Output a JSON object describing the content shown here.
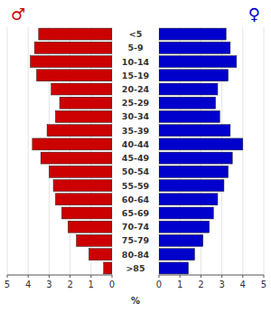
{
  "chart_data": {
    "type": "bar",
    "orientation": "horizontal",
    "categories": [
      ">85",
      "80-84",
      "75-79",
      "70-74",
      "65-69",
      "60-64",
      "55-59",
      "50-54",
      "45-49",
      "40-44",
      "35-39",
      "30-34",
      "25-29",
      "20-24",
      "15-19",
      "10-14",
      "5-9",
      "<5"
    ],
    "series": [
      {
        "name": "♂",
        "color": "#cc0000",
        "values": [
          0.4,
          1.1,
          1.7,
          2.1,
          2.4,
          2.7,
          2.8,
          3.0,
          3.4,
          3.8,
          3.1,
          2.7,
          2.5,
          2.9,
          3.6,
          3.9,
          3.7,
          3.5
        ]
      },
      {
        "name": "♀",
        "color": "#0000cc",
        "values": [
          1.4,
          1.7,
          2.1,
          2.4,
          2.6,
          2.8,
          3.1,
          3.3,
          3.5,
          4.0,
          3.4,
          2.9,
          2.7,
          2.8,
          3.3,
          3.7,
          3.4,
          3.2
        ]
      }
    ],
    "xlabel": "%",
    "xlim": [
      0,
      5
    ],
    "xticks": [
      0,
      1,
      2,
      3,
      4,
      5
    ]
  }
}
